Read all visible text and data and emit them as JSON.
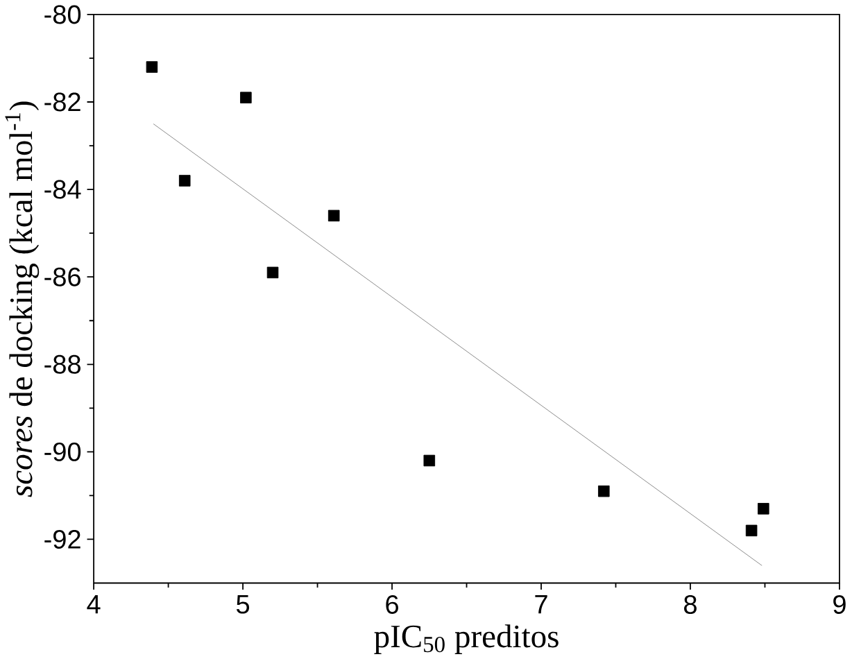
{
  "chart_data": {
    "type": "scatter",
    "xlabel": "pIC$_{50}$ preditos",
    "ylabel": "*scores* de docking (kcal mol$^{-1}$)",
    "xlim": [
      4,
      9
    ],
    "ylim": [
      -93,
      -80
    ],
    "xticks": [
      4,
      5,
      6,
      7,
      8,
      9
    ],
    "yticks": [
      -92,
      -90,
      -88,
      -86,
      -84,
      -82,
      -80
    ],
    "grid": false,
    "series": [
      {
        "marker": "square",
        "color": "#000000",
        "x": [
          4.39,
          4.61,
          5.02,
          5.2,
          5.61,
          6.25,
          7.42,
          8.41,
          8.49
        ],
        "values": [
          -81.2,
          -83.8,
          -81.9,
          -85.9,
          -84.6,
          -90.2,
          -90.9,
          -91.8,
          -91.3
        ]
      },
      {
        "type": "line",
        "marker": "none",
        "color": "#808080",
        "x": [
          4.4,
          8.48
        ],
        "values": [
          -82.5,
          -92.6
        ]
      }
    ]
  }
}
